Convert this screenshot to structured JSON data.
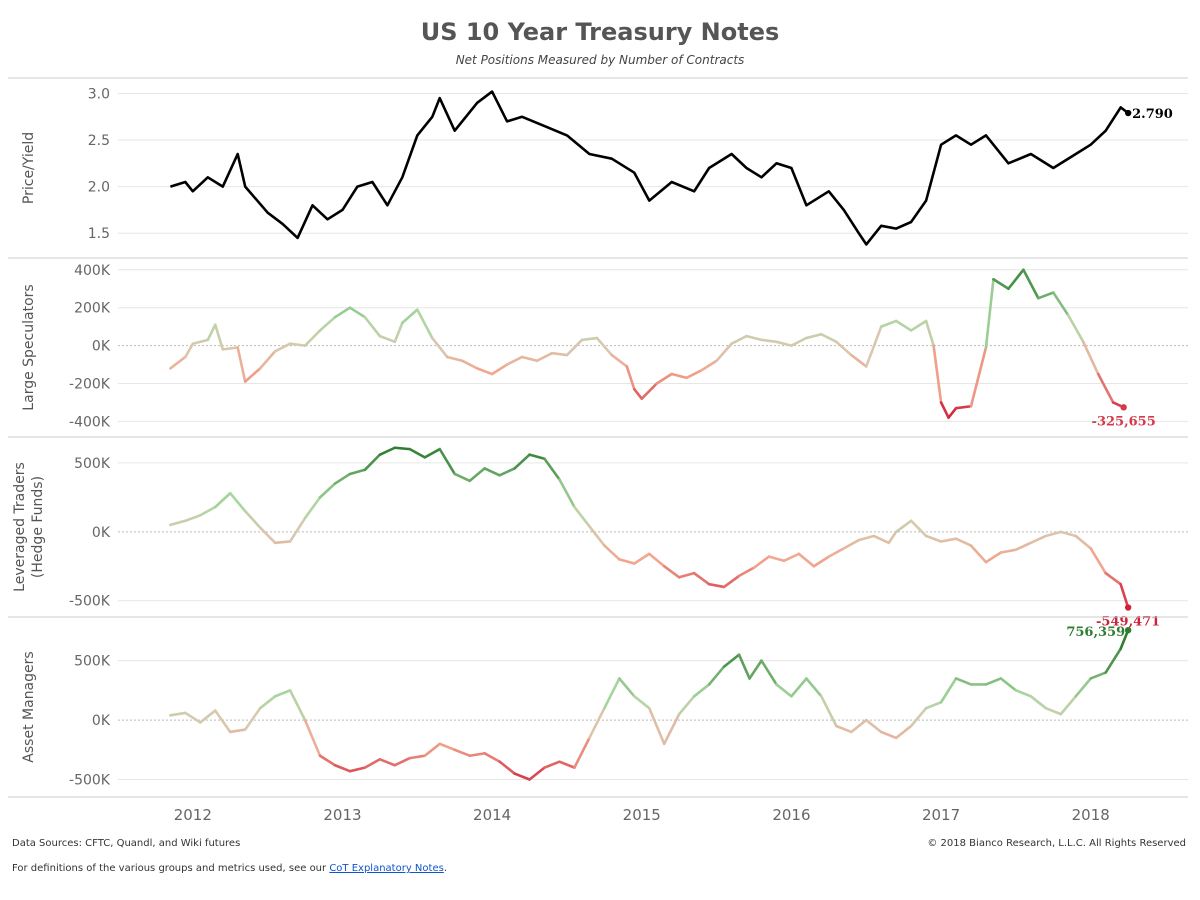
{
  "title": "US 10 Year Treasury Notes",
  "subtitle": "Net Positions Measured by Number of Contracts",
  "footer": {
    "sources": "Data Sources: CFTC, Quandl, and Wiki futures",
    "copyright": "© 2018 Bianco Research, L.L.C. All Rights Reserved",
    "definitions_prefix": "For definitions of the various groups and metrics used, see our",
    "link_text": "CoT Explanatory Notes",
    "definitions_suffix": "."
  },
  "colors": {
    "price_line": "#000000",
    "positive_strong": "#2e7d32",
    "positive_light": "#a9d8a0",
    "neutral": "#d8c9b0",
    "negative_light": "#f2a58e",
    "negative_strong": "#c8102e",
    "grid": "#e6e6e6",
    "panel_border": "#cccccc",
    "footer_link": "#1155cc"
  },
  "chart_data": {
    "type": "line",
    "x_axis": {
      "tick_labels": [
        "2012",
        "2013",
        "2014",
        "2015",
        "2016",
        "2017",
        "2018"
      ],
      "tick_years": [
        2012,
        2013,
        2014,
        2015,
        2016,
        2017,
        2018
      ],
      "range": [
        2011.5,
        2018.65
      ]
    },
    "panels": [
      {
        "id": "price",
        "ylabel": "Price/Yield",
        "ylim": [
          1.32,
          3.08
        ],
        "yticks": [
          1.5,
          2.0,
          2.5,
          3.0
        ],
        "ytick_labels": [
          "1.5",
          "2.0",
          "2.5",
          "3.0"
        ],
        "zero_line": false,
        "color_mode": "solid",
        "last_label": "2.790",
        "x": [
          2011.85,
          2011.95,
          2012.0,
          2012.1,
          2012.2,
          2012.3,
          2012.35,
          2012.5,
          2012.6,
          2012.7,
          2012.8,
          2012.9,
          2013.0,
          2013.1,
          2013.2,
          2013.3,
          2013.4,
          2013.5,
          2013.6,
          2013.65,
          2013.75,
          2013.9,
          2014.0,
          2014.1,
          2014.2,
          2014.35,
          2014.5,
          2014.65,
          2014.8,
          2014.95,
          2015.05,
          2015.2,
          2015.35,
          2015.45,
          2015.6,
          2015.7,
          2015.8,
          2015.9,
          2016.0,
          2016.1,
          2016.25,
          2016.35,
          2016.45,
          2016.5,
          2016.6,
          2016.7,
          2016.8,
          2016.9,
          2017.0,
          2017.1,
          2017.2,
          2017.3,
          2017.45,
          2017.6,
          2017.75,
          2017.9,
          2018.0,
          2018.1,
          2018.2,
          2018.25
        ],
        "values": [
          2.0,
          2.05,
          1.95,
          2.1,
          2.0,
          2.35,
          2.0,
          1.72,
          1.6,
          1.45,
          1.8,
          1.65,
          1.75,
          2.0,
          2.05,
          1.8,
          2.1,
          2.55,
          2.75,
          2.95,
          2.6,
          2.9,
          3.02,
          2.7,
          2.75,
          2.65,
          2.55,
          2.35,
          2.3,
          2.15,
          1.85,
          2.05,
          1.95,
          2.2,
          2.35,
          2.2,
          2.1,
          2.25,
          2.2,
          1.8,
          1.95,
          1.75,
          1.5,
          1.38,
          1.58,
          1.55,
          1.62,
          1.85,
          2.45,
          2.55,
          2.45,
          2.55,
          2.25,
          2.35,
          2.2,
          2.35,
          2.45,
          2.6,
          2.85,
          2.79
        ]
      },
      {
        "id": "large_speculators",
        "ylabel": "Large Speculators",
        "ylim": [
          -440000,
          420000
        ],
        "yticks": [
          -400000,
          -200000,
          0,
          200000,
          400000
        ],
        "ytick_labels": [
          "-400K",
          "-200K",
          "0K",
          "200K",
          "400K"
        ],
        "zero_line": true,
        "color_mode": "gradient",
        "color_extent": 400000,
        "last_label": "-325,655",
        "x": [
          2011.85,
          2011.95,
          2012.0,
          2012.1,
          2012.15,
          2012.2,
          2012.3,
          2012.35,
          2012.45,
          2012.55,
          2012.65,
          2012.75,
          2012.85,
          2012.95,
          2013.05,
          2013.15,
          2013.25,
          2013.35,
          2013.4,
          2013.5,
          2013.6,
          2013.7,
          2013.8,
          2013.9,
          2014.0,
          2014.1,
          2014.2,
          2014.3,
          2014.4,
          2014.5,
          2014.6,
          2014.7,
          2014.8,
          2014.9,
          2014.95,
          2015.0,
          2015.1,
          2015.2,
          2015.3,
          2015.4,
          2015.5,
          2015.6,
          2015.7,
          2015.8,
          2015.9,
          2016.0,
          2016.1,
          2016.2,
          2016.3,
          2016.4,
          2016.5,
          2016.6,
          2016.7,
          2016.8,
          2016.9,
          2016.95,
          2017.0,
          2017.05,
          2017.1,
          2017.2,
          2017.3,
          2017.35,
          2017.45,
          2017.55,
          2017.65,
          2017.75,
          2017.85,
          2017.95,
          2018.05,
          2018.15,
          2018.22
        ],
        "values": [
          -120000,
          -60000,
          10000,
          30000,
          110000,
          -20000,
          -10000,
          -190000,
          -120000,
          -30000,
          10000,
          0,
          80000,
          150000,
          200000,
          150000,
          50000,
          20000,
          120000,
          190000,
          40000,
          -60000,
          -80000,
          -120000,
          -150000,
          -100000,
          -60000,
          -80000,
          -40000,
          -50000,
          30000,
          40000,
          -50000,
          -110000,
          -230000,
          -280000,
          -200000,
          -150000,
          -170000,
          -130000,
          -80000,
          10000,
          50000,
          30000,
          20000,
          0,
          40000,
          60000,
          20000,
          -50000,
          -110000,
          100000,
          130000,
          80000,
          130000,
          0,
          -300000,
          -380000,
          -330000,
          -320000,
          -10000,
          350000,
          300000,
          400000,
          250000,
          280000,
          160000,
          20000,
          -150000,
          -300000,
          -325655
        ]
      },
      {
        "id": "leveraged_traders",
        "ylabel_lines": [
          "Leveraged Traders",
          "(Hedge Funds)"
        ],
        "ylim": [
          -560000,
          630000
        ],
        "yticks": [
          -500000,
          0,
          500000
        ],
        "ytick_labels": [
          "-500K",
          "0K",
          "500K"
        ],
        "zero_line": true,
        "color_mode": "gradient",
        "color_extent": 600000,
        "last_label": "-549,471",
        "x": [
          2011.85,
          2011.95,
          2012.05,
          2012.15,
          2012.25,
          2012.35,
          2012.45,
          2012.55,
          2012.65,
          2012.75,
          2012.85,
          2012.95,
          2013.05,
          2013.15,
          2013.25,
          2013.35,
          2013.45,
          2013.55,
          2013.65,
          2013.75,
          2013.85,
          2013.95,
          2014.05,
          2014.15,
          2014.25,
          2014.35,
          2014.45,
          2014.55,
          2014.65,
          2014.75,
          2014.85,
          2014.95,
          2015.05,
          2015.15,
          2015.25,
          2015.35,
          2015.45,
          2015.55,
          2015.65,
          2015.75,
          2015.85,
          2015.95,
          2016.05,
          2016.15,
          2016.25,
          2016.35,
          2016.45,
          2016.55,
          2016.65,
          2016.7,
          2016.8,
          2016.9,
          2017.0,
          2017.1,
          2017.2,
          2017.3,
          2017.4,
          2017.5,
          2017.6,
          2017.7,
          2017.8,
          2017.9,
          2018.0,
          2018.1,
          2018.2,
          2018.25
        ],
        "values": [
          50000,
          80000,
          120000,
          180000,
          280000,
          150000,
          30000,
          -80000,
          -70000,
          100000,
          250000,
          350000,
          420000,
          450000,
          560000,
          610000,
          600000,
          540000,
          600000,
          420000,
          370000,
          460000,
          410000,
          460000,
          560000,
          530000,
          380000,
          180000,
          40000,
          -100000,
          -200000,
          -230000,
          -160000,
          -250000,
          -330000,
          -300000,
          -380000,
          -400000,
          -320000,
          -260000,
          -180000,
          -210000,
          -160000,
          -250000,
          -180000,
          -120000,
          -60000,
          -30000,
          -80000,
          0,
          80000,
          -30000,
          -70000,
          -50000,
          -100000,
          -220000,
          -150000,
          -130000,
          -80000,
          -30000,
          0,
          -30000,
          -120000,
          -300000,
          -380000,
          -549471
        ]
      },
      {
        "id": "asset_managers",
        "ylabel": "Asset Managers",
        "ylim": [
          -580000,
          800000
        ],
        "yticks": [
          -500000,
          0,
          500000
        ],
        "ytick_labels": [
          "-500K",
          "0K",
          "500K"
        ],
        "zero_line": true,
        "color_mode": "gradient",
        "color_extent": 600000,
        "last_label": "756,359",
        "x": [
          2011.85,
          2011.95,
          2012.05,
          2012.15,
          2012.25,
          2012.35,
          2012.45,
          2012.55,
          2012.65,
          2012.75,
          2012.85,
          2012.95,
          2013.05,
          2013.15,
          2013.25,
          2013.35,
          2013.45,
          2013.55,
          2013.65,
          2013.75,
          2013.85,
          2013.95,
          2014.05,
          2014.15,
          2014.25,
          2014.35,
          2014.45,
          2014.55,
          2014.65,
          2014.75,
          2014.85,
          2014.95,
          2015.05,
          2015.15,
          2015.25,
          2015.35,
          2015.45,
          2015.55,
          2015.65,
          2015.72,
          2015.8,
          2015.9,
          2016.0,
          2016.1,
          2016.2,
          2016.3,
          2016.4,
          2016.5,
          2016.6,
          2016.7,
          2016.8,
          2016.9,
          2017.0,
          2017.1,
          2017.2,
          2017.3,
          2017.4,
          2017.5,
          2017.6,
          2017.7,
          2017.8,
          2017.9,
          2018.0,
          2018.1,
          2018.2,
          2018.25
        ],
        "values": [
          40000,
          60000,
          -20000,
          80000,
          -100000,
          -80000,
          100000,
          200000,
          250000,
          0,
          -300000,
          -380000,
          -430000,
          -400000,
          -330000,
          -380000,
          -320000,
          -300000,
          -200000,
          -250000,
          -300000,
          -280000,
          -350000,
          -450000,
          -500000,
          -400000,
          -350000,
          -400000,
          -150000,
          100000,
          350000,
          200000,
          100000,
          -200000,
          50000,
          200000,
          300000,
          450000,
          550000,
          350000,
          500000,
          300000,
          200000,
          350000,
          200000,
          -50000,
          -100000,
          0,
          -100000,
          -150000,
          -50000,
          100000,
          150000,
          350000,
          300000,
          300000,
          350000,
          250000,
          200000,
          100000,
          50000,
          200000,
          350000,
          400000,
          600000,
          756359
        ]
      }
    ]
  }
}
